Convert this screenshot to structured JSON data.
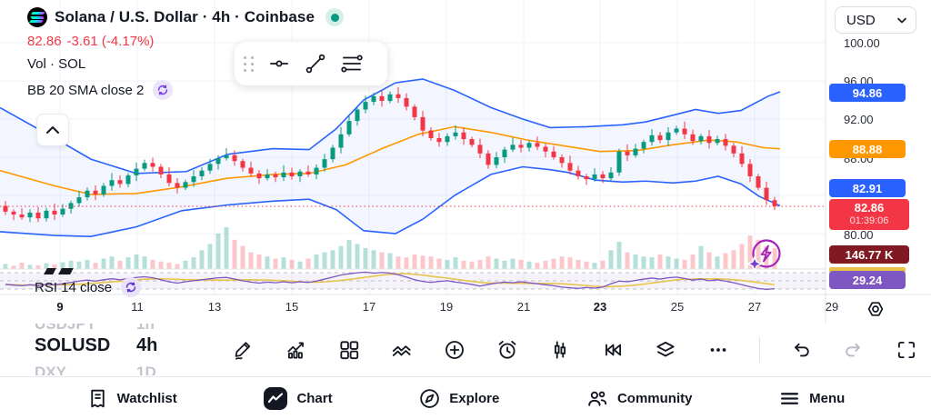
{
  "header": {
    "title": "Solana / U.S. Dollar · 4h · Coinbase",
    "price": "82.86",
    "change": "-3.61 (-4.17%)",
    "volume_row": "Vol · SOL",
    "bb_row": "BB 20 SMA close 2",
    "rsi_row": "RSI 14 close",
    "status_color": "#089981",
    "price_color": "#F23645"
  },
  "price_scale": {
    "currency": "USD",
    "plain_levels": [
      "100.00",
      "96.00",
      "92.00",
      "88.00",
      "80.00"
    ],
    "badges": [
      {
        "name": "bb-upper-label",
        "text": "94.86",
        "color": "#2962FF"
      },
      {
        "name": "bb-basis-label",
        "text": "88.88",
        "color": "#FF9800"
      },
      {
        "name": "bb-lower-label",
        "text": "82.91",
        "color": "#2962FF"
      },
      {
        "name": "last-price-label",
        "text": "82.86",
        "sub": "01:39:06",
        "color": "#F23645"
      },
      {
        "name": "volume-label",
        "text": "146.77 K",
        "color": "#801922"
      },
      {
        "name": "rsi-label",
        "text": "29.24",
        "color": "#7E57C2"
      }
    ]
  },
  "x_axis_labels": [
    {
      "text": "9",
      "bold": true
    },
    {
      "text": "11"
    },
    {
      "text": "13"
    },
    {
      "text": "15"
    },
    {
      "text": "17"
    },
    {
      "text": "19"
    },
    {
      "text": "21"
    },
    {
      "text": "23",
      "bold": true
    },
    {
      "text": "25"
    },
    {
      "text": "27"
    },
    {
      "text": "29"
    }
  ],
  "symbol_strip": {
    "previous": {
      "symbol": "USDJPY",
      "timeframe": "1h"
    },
    "current": {
      "symbol": "SOLUSD",
      "timeframe": "4h"
    },
    "next": {
      "symbol": "DXY",
      "timeframe": "1D"
    }
  },
  "bottom_nav": {
    "items": [
      {
        "label": "Watchlist",
        "active": false
      },
      {
        "label": "Chart",
        "active": true
      },
      {
        "label": "Explore",
        "active": false
      },
      {
        "label": "Community",
        "active": false
      },
      {
        "label": "Menu",
        "active": false
      }
    ]
  },
  "chart_data": {
    "type": "candlestick",
    "symbol": "SOLUSD",
    "interval": "4h",
    "exchange": "Coinbase",
    "last_price": 82.86,
    "change": -3.61,
    "change_pct": -4.17,
    "countdown": "01:39:06",
    "price_axis": {
      "visible_gridlines": [
        100,
        96,
        92,
        88,
        84,
        80
      ],
      "unit": "USD"
    },
    "x_tick_days": [
      "9",
      "11",
      "13",
      "15",
      "17",
      "19",
      "21",
      "23",
      "25",
      "27",
      "29"
    ],
    "indicators": {
      "bollinger": {
        "length": 20,
        "source": "close",
        "stddev": 2,
        "upper_now": 94.86,
        "basis_now": 88.88,
        "lower_now": 82.91
      },
      "rsi": {
        "length": 14,
        "source": "close",
        "now": 29.24
      },
      "volume_now": "146.77 K"
    },
    "closes": [
      82.3,
      82.0,
      81.7,
      82.2,
      81.6,
      82.4,
      82.0,
      82.6,
      83.2,
      83.8,
      84.5,
      84.1,
      85.0,
      85.6,
      85.2,
      86.1,
      86.8,
      87.4,
      87.0,
      86.2,
      85.3,
      84.8,
      85.4,
      86.0,
      86.6,
      87.3,
      87.9,
      88.2,
      87.6,
      86.9,
      86.3,
      85.8,
      86.2,
      85.9,
      86.4,
      86.0,
      86.5,
      86.2,
      86.9,
      87.8,
      89.0,
      90.4,
      91.8,
      93.0,
      93.8,
      94.4,
      93.9,
      94.6,
      94.2,
      93.3,
      92.2,
      90.8,
      90.0,
      89.6,
      90.2,
      90.6,
      89.9,
      89.3,
      88.4,
      87.2,
      88.0,
      88.8,
      89.3,
      89.0,
      89.5,
      89.1,
      88.6,
      88.0,
      87.4,
      86.6,
      86.0,
      85.7,
      86.2,
      85.8,
      86.4,
      88.6,
      88.2,
      88.9,
      89.6,
      90.3,
      89.8,
      90.6,
      91.0,
      90.4,
      89.7,
      90.2,
      89.5,
      89.9,
      89.2,
      88.4,
      87.3,
      86.0,
      84.8,
      83.5,
      82.86
    ],
    "volume_rel": [
      0.12,
      0.08,
      0.15,
      0.1,
      0.09,
      0.14,
      0.11,
      0.16,
      0.2,
      0.18,
      0.22,
      0.15,
      0.25,
      0.3,
      0.2,
      0.28,
      0.35,
      0.3,
      0.22,
      0.18,
      0.15,
      0.12,
      0.2,
      0.28,
      0.45,
      0.6,
      0.85,
      1.0,
      0.7,
      0.55,
      0.4,
      0.35,
      0.3,
      0.25,
      0.28,
      0.22,
      0.18,
      0.25,
      0.35,
      0.4,
      0.45,
      0.55,
      0.7,
      0.6,
      0.5,
      0.45,
      0.4,
      0.38,
      0.3,
      0.28,
      0.35,
      0.32,
      0.3,
      0.25,
      0.22,
      0.28,
      0.2,
      0.18,
      0.22,
      0.3,
      0.25,
      0.2,
      0.25,
      0.22,
      0.18,
      0.15,
      0.2,
      0.25,
      0.3,
      0.28,
      0.22,
      0.18,
      0.15,
      0.2,
      0.45,
      0.65,
      0.4,
      0.35,
      0.3,
      0.28,
      0.35,
      0.3,
      0.25,
      0.22,
      0.35,
      0.55,
      0.4,
      0.3,
      0.38,
      0.45,
      0.6,
      0.8,
      0.7,
      0.55,
      0.5
    ],
    "rsi_series": [
      42,
      40,
      38,
      41,
      39,
      42,
      41,
      44,
      48,
      52,
      55,
      52,
      56,
      59,
      56,
      60,
      63,
      65,
      62,
      56,
      50,
      46,
      50,
      53,
      56,
      59,
      62,
      63,
      58,
      53,
      49,
      46,
      49,
      47,
      50,
      47,
      50,
      48,
      52,
      58,
      64,
      70,
      74,
      77,
      79,
      76,
      78,
      76,
      71,
      64,
      56,
      51,
      48,
      51,
      53,
      49,
      46,
      42,
      37,
      42,
      46,
      49,
      47,
      50,
      47,
      44,
      41,
      38,
      34,
      32,
      30,
      33,
      31,
      34,
      44,
      52,
      50,
      54,
      58,
      61,
      58,
      62,
      64,
      60,
      55,
      58,
      53,
      56,
      52,
      47,
      41,
      35,
      30,
      27,
      29.2
    ],
    "bb_upper": [
      [
        0,
        93.2
      ],
      [
        60,
        90.0
      ],
      [
        100,
        87.8
      ],
      [
        150,
        86.3
      ],
      [
        205,
        86.5
      ],
      [
        250,
        88.3
      ],
      [
        300,
        88.9
      ],
      [
        340,
        88.8
      ],
      [
        370,
        91.0
      ],
      [
        400,
        94.0
      ],
      [
        435,
        95.8
      ],
      [
        465,
        96.2
      ],
      [
        500,
        95.0
      ],
      [
        540,
        93.2
      ],
      [
        575,
        92.0
      ],
      [
        605,
        91.1
      ],
      [
        645,
        91.2
      ],
      [
        685,
        91.4
      ],
      [
        710,
        91.7
      ],
      [
        740,
        92.4
      ],
      [
        765,
        93.0
      ],
      [
        790,
        92.6
      ],
      [
        815,
        92.9
      ],
      [
        845,
        94.4
      ],
      [
        858,
        94.86
      ]
    ],
    "bb_basis": [
      [
        0,
        86.6
      ],
      [
        60,
        85.0
      ],
      [
        100,
        84.1
      ],
      [
        150,
        84.2
      ],
      [
        200,
        84.9
      ],
      [
        250,
        85.8
      ],
      [
        300,
        86.2
      ],
      [
        340,
        86.3
      ],
      [
        380,
        87.2
      ],
      [
        420,
        88.9
      ],
      [
        460,
        90.4
      ],
      [
        500,
        91.2
      ],
      [
        540,
        90.6
      ],
      [
        580,
        89.8
      ],
      [
        620,
        89.2
      ],
      [
        660,
        88.6
      ],
      [
        700,
        88.7
      ],
      [
        740,
        89.3
      ],
      [
        780,
        89.8
      ],
      [
        810,
        89.6
      ],
      [
        840,
        89.0
      ],
      [
        858,
        88.88
      ]
    ],
    "bb_lower": [
      [
        0,
        80.2
      ],
      [
        60,
        79.8
      ],
      [
        100,
        79.7
      ],
      [
        150,
        80.7
      ],
      [
        200,
        82.4
      ],
      [
        250,
        83.0
      ],
      [
        300,
        83.4
      ],
      [
        340,
        83.6
      ],
      [
        370,
        82.5
      ],
      [
        400,
        80.3
      ],
      [
        435,
        80.0
      ],
      [
        465,
        81.5
      ],
      [
        500,
        84.0
      ],
      [
        540,
        86.2
      ],
      [
        575,
        87.0
      ],
      [
        605,
        86.7
      ],
      [
        625,
        86.4
      ],
      [
        655,
        85.6
      ],
      [
        685,
        85.4
      ],
      [
        710,
        85.5
      ],
      [
        740,
        85.3
      ],
      [
        765,
        85.5
      ],
      [
        790,
        86.0
      ],
      [
        815,
        85.2
      ],
      [
        835,
        83.9
      ],
      [
        858,
        82.91
      ]
    ],
    "colors": {
      "up": "#089981",
      "down": "#F23645",
      "bb_band": "#2962FF",
      "bb_basis": "#FF9800",
      "rsi_line": "#7E57C2",
      "rsi_ma": "#E7C54A",
      "grid": "#F0F3FA",
      "last_line": "#F23645"
    }
  }
}
